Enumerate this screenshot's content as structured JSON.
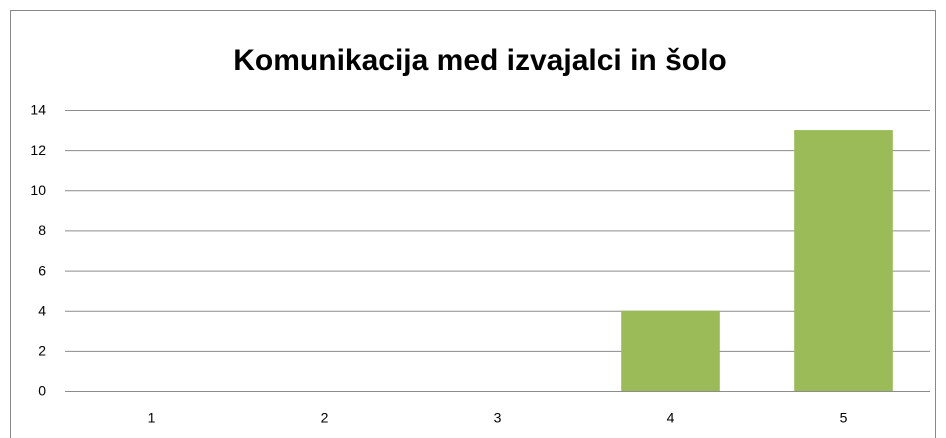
{
  "chart_data": {
    "type": "bar",
    "title": "Komunikacija med izvajalci in šolo",
    "categories": [
      "1",
      "2",
      "3",
      "4",
      "5"
    ],
    "values": [
      0,
      0,
      0,
      4,
      13
    ],
    "color": "#9bbb59",
    "ylim": [
      0,
      14
    ],
    "yticks": [
      0,
      2,
      4,
      6,
      8,
      10,
      12,
      14
    ],
    "grid": true
  }
}
